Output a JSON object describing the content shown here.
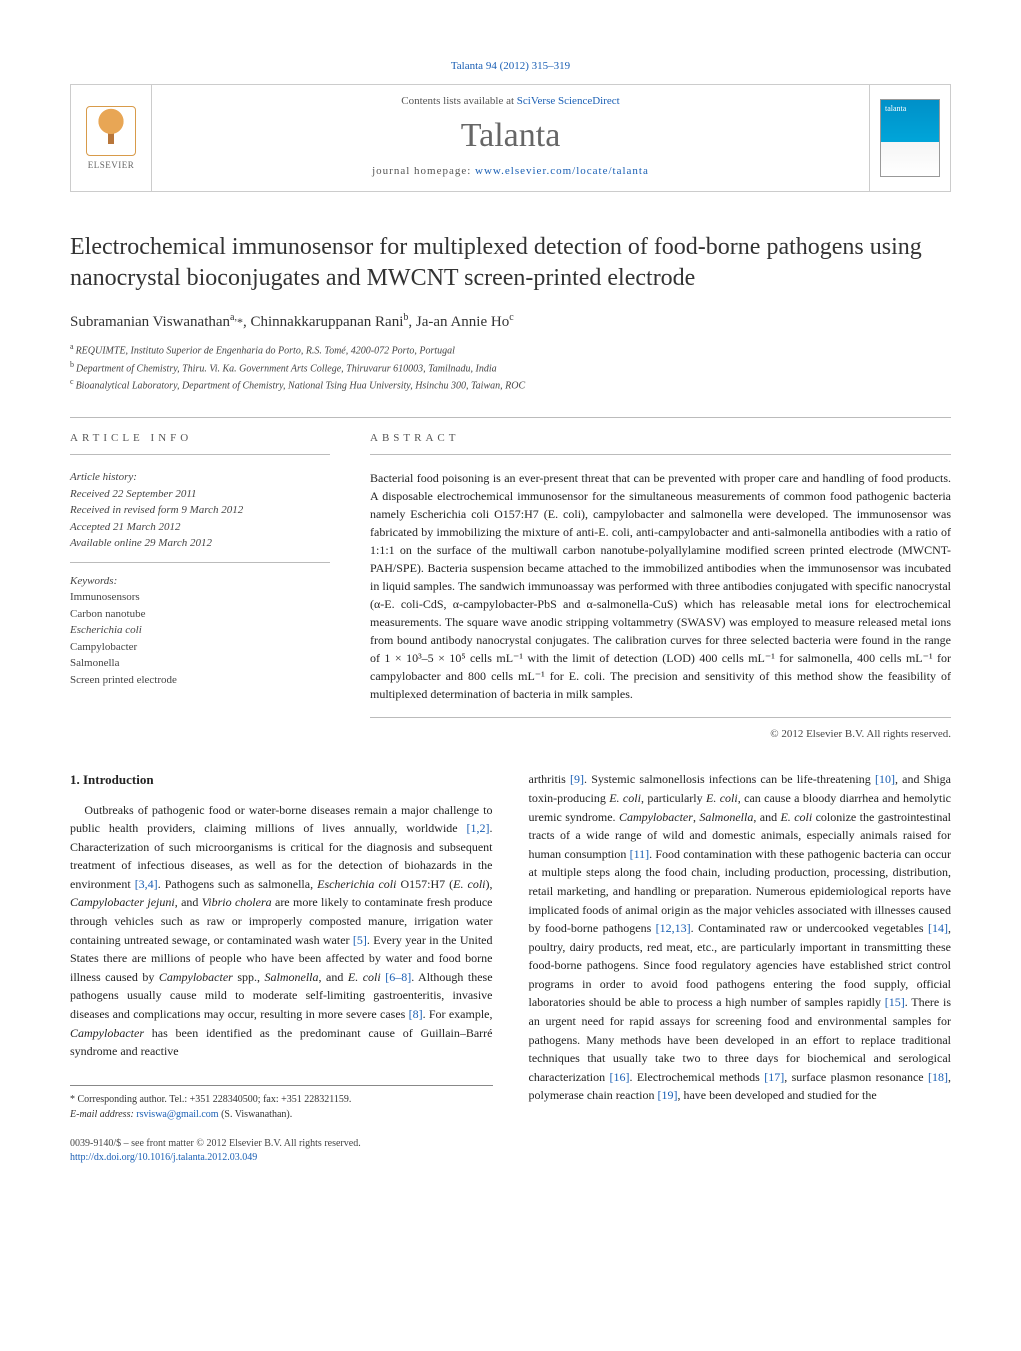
{
  "journal_ref": {
    "journal": "Talanta",
    "vol_pages": "94 (2012) 315–319"
  },
  "header": {
    "contents_prefix": "Contents lists available at ",
    "contents_link": "SciVerse ScienceDirect",
    "journal_title": "Talanta",
    "homepage_prefix": "journal homepage: ",
    "homepage_link": "www.elsevier.com/locate/talanta",
    "publisher_name": "ELSEVIER",
    "cover_text": "talanta"
  },
  "title": "Electrochemical immunosensor for multiplexed detection of food-borne pathogens using nanocrystal bioconjugates and MWCNT screen-printed electrode",
  "authors": [
    {
      "name": "Subramanian Viswanathan",
      "aff": "a,",
      "corr": "*"
    },
    {
      "name": "Chinnakkaruppanan Rani",
      "aff": "b",
      "corr": ""
    },
    {
      "name": "Ja-an Annie Ho",
      "aff": "c",
      "corr": ""
    }
  ],
  "affiliations": [
    {
      "sup": "a",
      "text": "REQUIMTE, Instituto Superior de Engenharia do Porto, R.S. Tomé, 4200-072 Porto, Portugal"
    },
    {
      "sup": "b",
      "text": "Department of Chemistry, Thiru. Vi. Ka. Government Arts College, Thiruvarur 610003, Tamilnadu, India"
    },
    {
      "sup": "c",
      "text": "Bioanalytical Laboratory, Department of Chemistry, National Tsing Hua University, Hsinchu 300, Taiwan, ROC"
    }
  ],
  "article_info": {
    "label": "ARTICLE INFO",
    "history_title": "Article history:",
    "history": [
      "Received 22 September 2011",
      "Received in revised form 9 March 2012",
      "Accepted 21 March 2012",
      "Available online 29 March 2012"
    ],
    "keywords_title": "Keywords:",
    "keywords": [
      "Immunosensors",
      "Carbon nanotube",
      "Escherichia coli",
      "Campylobacter",
      "Salmonella",
      "Screen printed electrode"
    ]
  },
  "abstract": {
    "label": "ABSTRACT",
    "text": "Bacterial food poisoning is an ever-present threat that can be prevented with proper care and handling of food products. A disposable electrochemical immunosensor for the simultaneous measurements of common food pathogenic bacteria namely Escherichia coli O157:H7 (E. coli), campylobacter and salmonella were developed. The immunosensor was fabricated by immobilizing the mixture of anti-E. coli, anti-campylobacter and anti-salmonella antibodies with a ratio of 1:1:1 on the surface of the multiwall carbon nanotube-polyallylamine modified screen printed electrode (MWCNT-PAH/SPE). Bacteria suspension became attached to the immobilized antibodies when the immunosensor was incubated in liquid samples. The sandwich immunoassay was performed with three antibodies conjugated with specific nanocrystal (α-E. coli-CdS, α-campylobacter-PbS and α-salmonella-CuS) which has releasable metal ions for electrochemical measurements. The square wave anodic stripping voltammetry (SWASV) was employed to measure released metal ions from bound antibody nanocrystal conjugates. The calibration curves for three selected bacteria were found in the range of 1 × 10³–5 × 10⁵ cells mL⁻¹ with the limit of detection (LOD) 400 cells mL⁻¹ for salmonella, 400 cells mL⁻¹ for campylobacter and 800 cells mL⁻¹ for E. coli. The precision and sensitivity of this method show the feasibility of multiplexed determination of bacteria in milk samples.",
    "copyright": "© 2012 Elsevier B.V. All rights reserved."
  },
  "body": {
    "section_title": "1. Introduction",
    "left_para": "Outbreaks of pathogenic food or water-borne diseases remain a major challenge to public health providers, claiming millions of lives annually, worldwide [1,2]. Characterization of such microorganisms is critical for the diagnosis and subsequent treatment of infectious diseases, as well as for the detection of biohazards in the environment [3,4]. Pathogens such as salmonella, Escherichia coli O157:H7 (E. coli), Campylobacter jejuni, and Vibrio cholera are more likely to contaminate fresh produce through vehicles such as raw or improperly composted manure, irrigation water containing untreated sewage, or contaminated wash water [5]. Every year in the United States there are millions of people who have been affected by water and food borne illness caused by Campylobacter spp., Salmonella, and E. coli [6–8]. Although these pathogens usually cause mild to moderate self-limiting gastroenteritis, invasive diseases and complications may occur, resulting in more severe cases [8]. For example, Campylobacter has been identified as the predominant cause of Guillain–Barré syndrome and reactive",
    "right_para": "arthritis [9]. Systemic salmonellosis infections can be life-threatening [10], and Shiga toxin-producing E. coli, particularly E. coli, can cause a bloody diarrhea and hemolytic uremic syndrome. Campylobacter, Salmonella, and E. coli colonize the gastrointestinal tracts of a wide range of wild and domestic animals, especially animals raised for human consumption [11]. Food contamination with these pathogenic bacteria can occur at multiple steps along the food chain, including production, processing, distribution, retail marketing, and handling or preparation. Numerous epidemiological reports have implicated foods of animal origin as the major vehicles associated with illnesses caused by food-borne pathogens [12,13]. Contaminated raw or undercooked vegetables [14], poultry, dairy products, red meat, etc., are particularly important in transmitting these food-borne pathogens. Since food regulatory agencies have established strict control programs in order to avoid food pathogens entering the food supply, official laboratories should be able to process a high number of samples rapidly [15]. There is an urgent need for rapid assays for screening food and environmental samples for pathogens. Many methods have been developed in an effort to replace traditional techniques that usually take two to three days for biochemical and serological characterization [16]. Electrochemical methods [17], surface plasmon resonance [18], polymerase chain reaction [19], have been developed and studied for the"
  },
  "footnote": {
    "corr_label": "* Corresponding author. Tel.: +351 228340500; fax: +351 228321159.",
    "email_label": "E-mail address:",
    "email": "rsviswa@gmail.com",
    "email_of": "(S. Viswanathan)."
  },
  "footer": {
    "line1": "0039-9140/$ – see front matter © 2012 Elsevier B.V. All rights reserved.",
    "doi": "http://dx.doi.org/10.1016/j.talanta.2012.03.049"
  },
  "colors": {
    "link": "#1a5fb4",
    "rule": "#bbbbbb",
    "text": "#222222",
    "brand_blue": "#0090c8"
  },
  "refs": [
    "[1,2]",
    "[3,4]",
    "[5]",
    "[6–8]",
    "[8]",
    "[9]",
    "[10]",
    "[11]",
    "[12,13]",
    "[14]",
    "[15]",
    "[16]",
    "[17]",
    "[18]",
    "[19]"
  ]
}
